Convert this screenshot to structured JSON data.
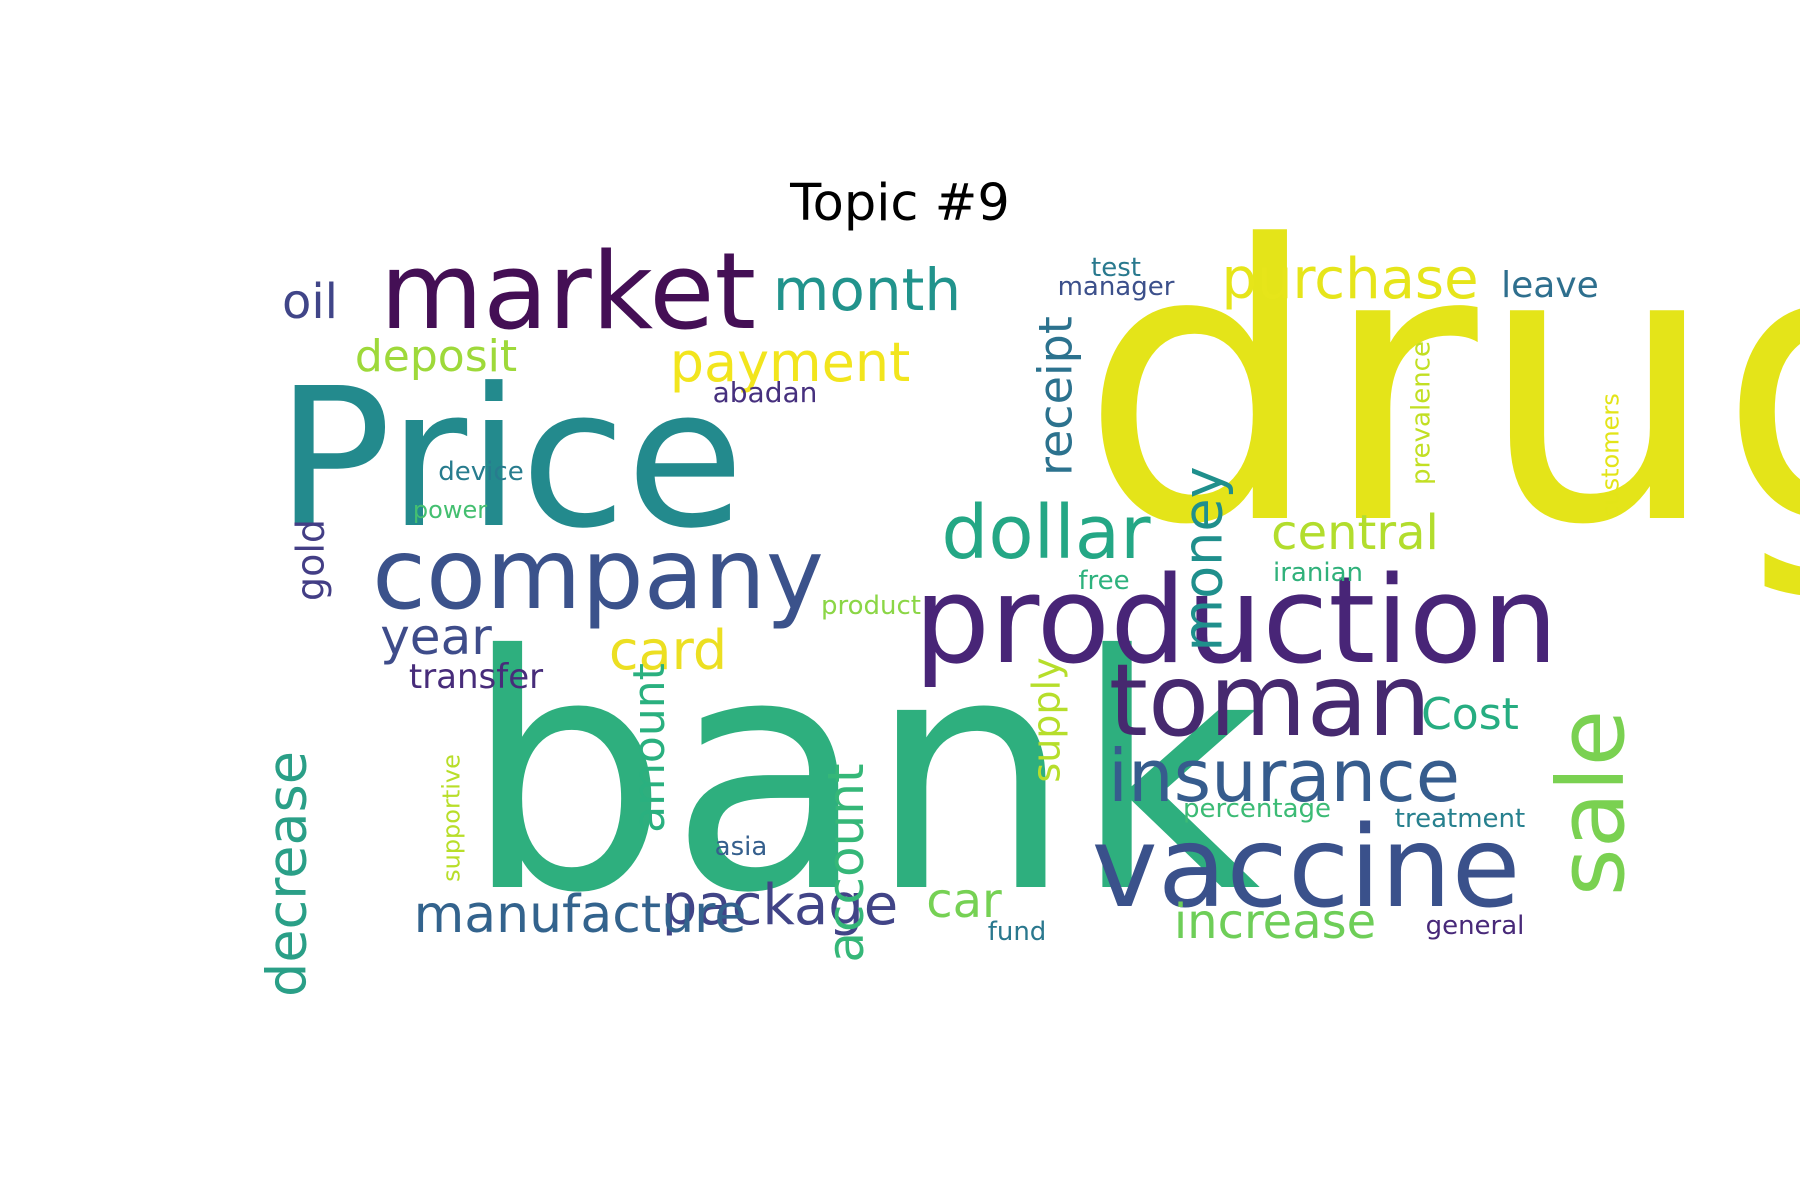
{
  "chart_data": {
    "type": "wordcloud",
    "title": "Topic #9",
    "words": [
      {
        "text": "drug",
        "color": "#e4e419"
      },
      {
        "text": "bank",
        "color": "#2eaf7e"
      },
      {
        "text": "Price",
        "color": "#238a8d"
      },
      {
        "text": "production",
        "color": "#482577"
      },
      {
        "text": "market",
        "color": "#440f55"
      },
      {
        "text": "company",
        "color": "#3b528b"
      },
      {
        "text": "vaccine",
        "color": "#3a518b"
      },
      {
        "text": "toman",
        "color": "#46296f"
      },
      {
        "text": "insurance",
        "color": "#365c8d"
      },
      {
        "text": "sale",
        "color": "#7ad151"
      },
      {
        "text": "dollar",
        "color": "#24a785"
      },
      {
        "text": "purchase",
        "color": "#e6e51a"
      },
      {
        "text": "month",
        "color": "#21938c"
      },
      {
        "text": "payment",
        "color": "#f2e51d"
      },
      {
        "text": "money",
        "color": "#1f8f8c"
      },
      {
        "text": "package",
        "color": "#414487"
      },
      {
        "text": "manufacture",
        "color": "#33638d"
      },
      {
        "text": "decrease",
        "color": "#2a9f87"
      },
      {
        "text": "account",
        "color": "#35b778"
      },
      {
        "text": "central",
        "color": "#b2dd2d"
      },
      {
        "text": "receipt",
        "color": "#2c728e"
      },
      {
        "text": "card",
        "color": "#ecdf22"
      },
      {
        "text": "year",
        "color": "#3e4c8a"
      },
      {
        "text": "increase",
        "color": "#6ece58"
      },
      {
        "text": "car",
        "color": "#76d154"
      },
      {
        "text": "Cost",
        "color": "#26ad81"
      },
      {
        "text": "amount",
        "color": "#2ab07f"
      },
      {
        "text": "supply",
        "color": "#b6de2b"
      },
      {
        "text": "deposit",
        "color": "#9ed93a"
      },
      {
        "text": "oil",
        "color": "#404588"
      },
      {
        "text": "gold",
        "color": "#433e85"
      },
      {
        "text": "leave",
        "color": "#2e6f8e"
      },
      {
        "text": "transfer",
        "color": "#472c7a"
      },
      {
        "text": "abadan",
        "color": "#46307e"
      },
      {
        "text": "prevalence",
        "color": "#c2df23"
      },
      {
        "text": "customers",
        "color": "#e3e418"
      },
      {
        "text": "iranian",
        "color": "#30b17b"
      },
      {
        "text": "percentage",
        "color": "#3cbb75"
      },
      {
        "text": "treatment",
        "color": "#27808e"
      },
      {
        "text": "test",
        "color": "#29798e"
      },
      {
        "text": "manager",
        "color": "#3c508b"
      },
      {
        "text": "device",
        "color": "#287c8e"
      },
      {
        "text": "power",
        "color": "#44bf70"
      },
      {
        "text": "free",
        "color": "#2db27d"
      },
      {
        "text": "product",
        "color": "#8bd646"
      },
      {
        "text": "supportive",
        "color": "#b8de29"
      },
      {
        "text": "asia",
        "color": "#355f8d"
      },
      {
        "text": "fund",
        "color": "#2a788e"
      },
      {
        "text": "general",
        "color": "#482979"
      }
    ]
  }
}
